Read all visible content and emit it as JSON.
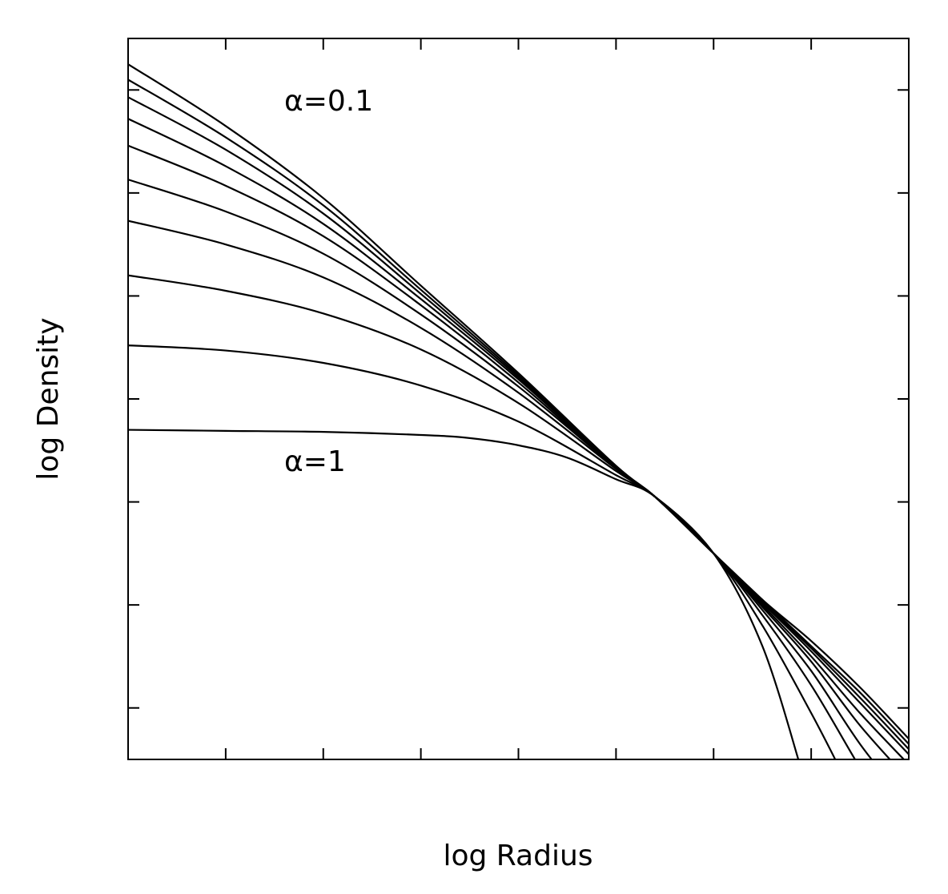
{
  "chart_data": {
    "type": "line",
    "title": "",
    "xlabel": "log Radius",
    "ylabel": "log Density",
    "xlim": [
      0,
      8
    ],
    "ylim": [
      0,
      7
    ],
    "x_ticks": [
      1,
      2,
      3,
      4,
      5,
      6,
      7
    ],
    "y_ticks": [
      0.5,
      1.5,
      2.5,
      3.5,
      4.5,
      5.5,
      6.5
    ],
    "tick_labels_shown": false,
    "grid": false,
    "legend": "none",
    "line_color": "#000000",
    "annotations": [
      {
        "text": "α=0.1",
        "x": 1.6,
        "y": 6.3
      },
      {
        "text": "α=1",
        "x": 1.6,
        "y": 2.8
      }
    ],
    "series": [
      {
        "x": [
          0,
          1,
          2,
          3,
          4,
          5,
          5.4,
          6,
          6.5,
          7,
          7.5,
          8
        ],
        "y": [
          6.75,
          6.15,
          5.45,
          4.6,
          3.75,
          2.85,
          2.55,
          2.0,
          1.55,
          1.15,
          0.7,
          0.2
        ]
      },
      {
        "x": [
          0,
          1,
          2,
          3,
          4,
          5,
          5.4,
          6,
          6.5,
          7,
          7.5,
          8
        ],
        "y": [
          6.6,
          6.04,
          5.38,
          4.56,
          3.73,
          2.85,
          2.55,
          2.0,
          1.55,
          1.1,
          0.65,
          0.15
        ]
      },
      {
        "x": [
          0,
          1,
          2,
          3,
          4,
          5,
          5.4,
          6,
          6.5,
          7,
          7.5,
          8
        ],
        "y": [
          6.43,
          5.92,
          5.3,
          4.52,
          3.71,
          2.84,
          2.55,
          2.0,
          1.53,
          1.08,
          0.6,
          0.1
        ]
      },
      {
        "x": [
          0,
          1,
          2,
          3,
          4,
          5,
          5.4,
          6,
          6.5,
          7,
          7.5,
          8
        ],
        "y": [
          6.22,
          5.76,
          5.2,
          4.47,
          3.69,
          2.84,
          2.55,
          2.0,
          1.52,
          1.05,
          0.55,
          0.05
        ]
      },
      {
        "x": [
          0,
          1,
          2,
          3,
          4,
          5,
          5.4,
          6,
          6.5,
          7,
          7.5,
          8
        ],
        "y": [
          5.96,
          5.57,
          5.08,
          4.41,
          3.66,
          2.83,
          2.55,
          2.0,
          1.5,
          1.0,
          0.45,
          -0.05
        ]
      },
      {
        "x": [
          0,
          1,
          2,
          3,
          4,
          5,
          5.4,
          6,
          6.5,
          7,
          7.5,
          8
        ],
        "y": [
          5.63,
          5.32,
          4.91,
          4.32,
          3.62,
          2.83,
          2.55,
          2.0,
          1.48,
          0.95,
          0.33,
          -0.2
        ]
      },
      {
        "x": [
          0,
          1,
          2,
          3,
          4,
          5,
          5.4,
          6,
          6.5,
          7,
          7.5,
          8
        ],
        "y": [
          5.23,
          5.0,
          4.68,
          4.19,
          3.56,
          2.82,
          2.55,
          2.0,
          1.45,
          0.86,
          0.15,
          -0.45
        ]
      },
      {
        "x": [
          0,
          1,
          2,
          3,
          4,
          5,
          5.4,
          6,
          6.5,
          7,
          7.5,
          7.85
        ],
        "y": [
          4.7,
          4.55,
          4.33,
          3.98,
          3.46,
          2.8,
          2.55,
          2.0,
          1.4,
          0.72,
          -0.08,
          -0.6
        ]
      },
      {
        "x": [
          0,
          1,
          2,
          3,
          4,
          5,
          5.4,
          6,
          6.5,
          7,
          7.3
        ],
        "y": [
          4.02,
          3.97,
          3.85,
          3.63,
          3.28,
          2.76,
          2.55,
          2.0,
          1.3,
          0.45,
          -0.1
        ]
      },
      {
        "x": [
          0,
          1,
          2,
          3,
          3.5,
          4,
          4.5,
          5,
          5.4,
          6,
          6.5,
          6.9
        ],
        "y": [
          3.2,
          3.19,
          3.18,
          3.15,
          3.12,
          3.05,
          2.93,
          2.72,
          2.55,
          2.0,
          1.1,
          -0.1
        ]
      }
    ]
  }
}
